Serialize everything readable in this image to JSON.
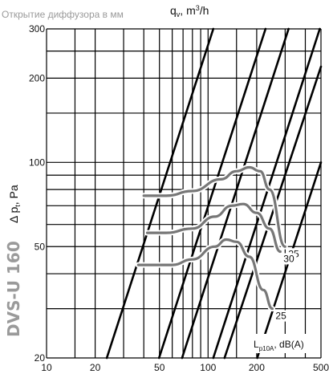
{
  "chart_data": {
    "type": "line",
    "subtitle": "Открытие диффузора в мм",
    "model_label": "DVS-U 160",
    "xlabel": {
      "main": "q",
      "sub": "v",
      "rest": ", m",
      "sup": "3",
      "unit": "/h"
    },
    "ylabel": {
      "delta": "Δ p",
      "sub": "t",
      "rest": ", Pa"
    },
    "xscale": "log",
    "yscale": "log",
    "xlim": [
      10,
      500
    ],
    "ylim": [
      20,
      300
    ],
    "x_ticks": [
      {
        "value": 10,
        "label": "10"
      },
      {
        "value": 20,
        "label": "20"
      },
      {
        "value": 50,
        "label": "50"
      },
      {
        "value": 100,
        "label": "100"
      },
      {
        "value": 200,
        "label": "200"
      },
      {
        "value": 500,
        "label": "500"
      }
    ],
    "y_ticks": [
      {
        "value": 20,
        "label": "20"
      },
      {
        "value": 50,
        "label": "50"
      },
      {
        "value": 100,
        "label": "100"
      },
      {
        "value": 200,
        "label": "200"
      },
      {
        "value": 300,
        "label": "300"
      }
    ],
    "x_grid": [
      10,
      15,
      20,
      30,
      40,
      50,
      60,
      70,
      80,
      90,
      100,
      150,
      200,
      300,
      400,
      500
    ],
    "y_grid": [
      20,
      30,
      40,
      50,
      60,
      70,
      80,
      90,
      100,
      150,
      200,
      250,
      300
    ],
    "series": [
      {
        "values": [
          [
            23.6,
            20
          ],
          [
            107.7,
            300
          ]
        ]
      },
      {
        "values": [
          [
            49.7,
            20
          ],
          [
            226.7,
            300
          ]
        ]
      },
      {
        "values": [
          [
            69.0,
            20
          ],
          [
            314.8,
            300
          ]
        ]
      },
      {
        "values": [
          [
            107.7,
            20
          ],
          [
            491.4,
            300
          ]
        ]
      },
      {
        "values": [
          [
            126.4,
            20
          ],
          [
            500,
            220
          ]
        ]
      },
      {
        "values": [
          [
            201.6,
            20
          ],
          [
            500,
            100
          ]
        ]
      }
    ],
    "noise_curves": [
      {
        "label": "35",
        "values": [
          [
            40,
            76
          ],
          [
            55,
            76
          ],
          [
            80,
            79
          ],
          [
            120,
            87
          ],
          [
            150,
            93
          ],
          [
            180,
            96
          ],
          [
            210,
            93
          ],
          [
            240,
            80
          ],
          [
            300,
            50
          ]
        ]
      },
      {
        "label": "30",
        "values": [
          [
            42,
            56
          ],
          [
            55,
            56
          ],
          [
            80,
            58
          ],
          [
            110,
            64
          ],
          [
            140,
            70
          ],
          [
            165,
            71
          ],
          [
            200,
            66
          ],
          [
            240,
            58
          ],
          [
            280,
            48
          ]
        ]
      },
      {
        "label": "25",
        "values": [
          [
            37,
            43
          ],
          [
            60,
            43
          ],
          [
            80,
            45
          ],
          [
            110,
            50
          ],
          [
            130,
            53
          ],
          [
            150,
            52
          ],
          [
            180,
            46
          ],
          [
            220,
            35
          ],
          [
            250,
            30
          ]
        ]
      }
    ],
    "legend": {
      "text_main": "L",
      "text_sub": "p10A",
      "text_rest": ", dB(A)",
      "placement": "bottom-right"
    },
    "grid": true,
    "colors": {
      "grid": "#000000",
      "lines": "#000000",
      "noise": "#777777",
      "subtitle": "#9a9a9a"
    }
  }
}
